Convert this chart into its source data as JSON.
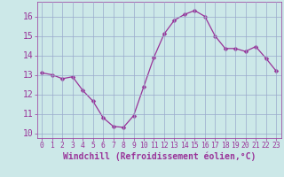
{
  "x": [
    0,
    1,
    2,
    3,
    4,
    5,
    6,
    7,
    8,
    9,
    10,
    11,
    12,
    13,
    14,
    15,
    16,
    17,
    18,
    19,
    20,
    21,
    22,
    23
  ],
  "y": [
    13.1,
    13.0,
    12.8,
    12.9,
    12.2,
    11.65,
    10.8,
    10.35,
    10.3,
    10.9,
    12.4,
    13.9,
    15.1,
    15.8,
    16.1,
    16.3,
    16.0,
    15.0,
    14.35,
    14.35,
    14.2,
    14.45,
    13.85,
    13.2
  ],
  "line_color": "#993399",
  "marker": "D",
  "marker_size": 2.5,
  "bg_color": "#cce8e8",
  "grid_color": "#99aacc",
  "xlabel": "Windchill (Refroidissement éolien,°C)",
  "xlim": [
    -0.5,
    23.5
  ],
  "ylim": [
    9.75,
    16.75
  ],
  "yticks": [
    10,
    11,
    12,
    13,
    14,
    15,
    16
  ],
  "xticks": [
    0,
    1,
    2,
    3,
    4,
    5,
    6,
    7,
    8,
    9,
    10,
    11,
    12,
    13,
    14,
    15,
    16,
    17,
    18,
    19,
    20,
    21,
    22,
    23
  ],
  "tick_color": "#993399",
  "label_color": "#993399",
  "ytick_fontsize": 7,
  "xtick_fontsize": 5.8,
  "xlabel_fontsize": 7.0
}
